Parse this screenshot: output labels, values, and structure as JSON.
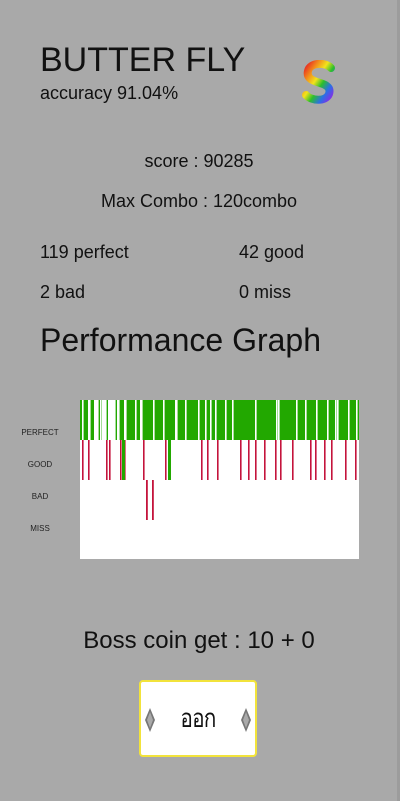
{
  "song": {
    "title": "BUTTER FLY",
    "accuracy": "accuracy 91.04%"
  },
  "rank": {
    "icon": "rainbow-s-rank-icon",
    "colors": [
      "#e62222",
      "#f28c1c",
      "#f2e31c",
      "#2bbf2b",
      "#2b6fe6",
      "#8a2be6"
    ]
  },
  "results": {
    "score": "score : 90285",
    "max_combo": "Max Combo : 120combo",
    "perfect": "119 perfect",
    "good": "42 good",
    "bad": "2 bad",
    "miss": "0 miss"
  },
  "graph": {
    "title": "Performance Graph",
    "row_labels": [
      "PERFECT",
      "GOOD",
      "BAD",
      "MISS"
    ],
    "colors": {
      "perfect": "#22a800",
      "good": "#c4143c",
      "bad": "#c4143c",
      "miss": "#c4143c",
      "background": "#ffffff"
    },
    "perfect_gaps": [
      2,
      8,
      9,
      14,
      15,
      16,
      17,
      20,
      22,
      23,
      24,
      25,
      28,
      29,
      30,
      31,
      32,
      33,
      34,
      37,
      38,
      44,
      45,
      55,
      60,
      61,
      73,
      83,
      95,
      96,
      105,
      118,
      125,
      130,
      135,
      145,
      152,
      175,
      196,
      198,
      216,
      225,
      236,
      247,
      255,
      257,
      268,
      276
    ],
    "good_lines": [
      2,
      8,
      26,
      29,
      40,
      44,
      63,
      85,
      121,
      127,
      137,
      160,
      168,
      175,
      184,
      195,
      200,
      212,
      230,
      235,
      244,
      251,
      265,
      275
    ],
    "good_green": [
      42,
      88
    ],
    "bad_lines": [
      66,
      72
    ]
  },
  "boss_coin": "Boss coin get : 10 + 0",
  "exit_button": {
    "label": "ออก"
  }
}
